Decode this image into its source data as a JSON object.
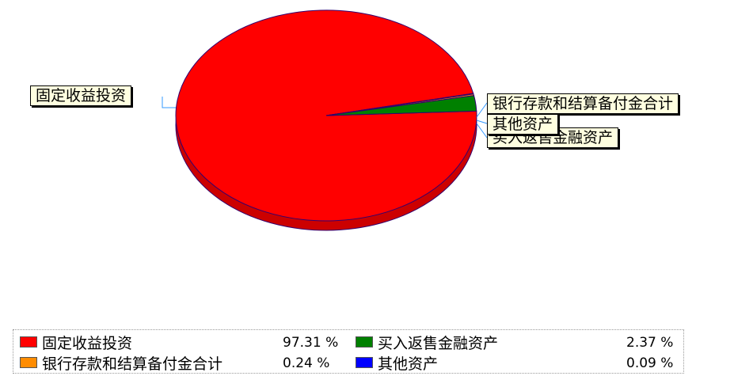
{
  "chart_data": {
    "type": "pie",
    "title": "",
    "slices": [
      {
        "label": "固定收益投资",
        "percent_label": "97.31 %",
        "value": 97.31,
        "color": "#ff0000"
      },
      {
        "label": "买入返售金融资产",
        "percent_label": "2.37 %",
        "value": 2.37,
        "color": "#008000"
      },
      {
        "label": "银行存款和结算备付金合计",
        "percent_label": "0.24 %",
        "value": 0.24,
        "color": "#ff8c00"
      },
      {
        "label": "其他资产",
        "percent_label": "0.09 %",
        "value": 0.09,
        "color": "#0000ff"
      }
    ],
    "legend_placement": "bottom"
  }
}
